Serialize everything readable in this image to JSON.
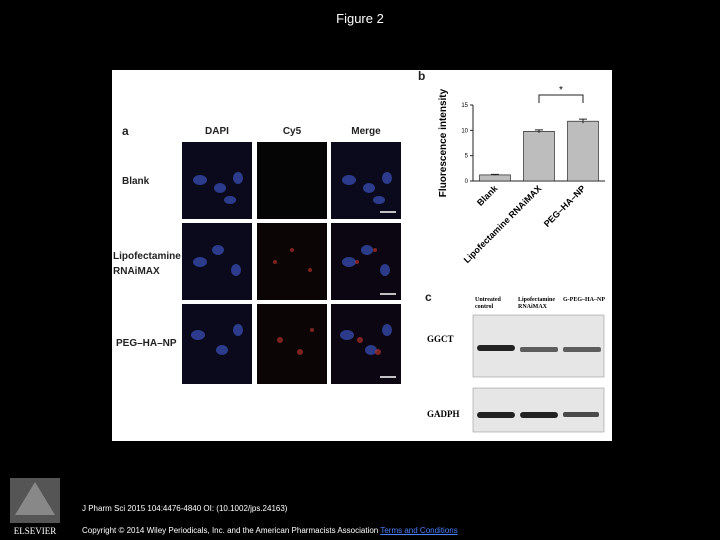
{
  "header": {
    "title": "Figure 2"
  },
  "panel_a": {
    "label": "a",
    "columns": [
      "DAPI",
      "Cy5",
      "Merge"
    ],
    "rows": [
      "Blank",
      "Lipofectamine RNAiMAX",
      "PEG–HA–NP"
    ]
  },
  "chart_data": {
    "type": "bar",
    "label": "b",
    "y_label": "Fluorescence intensity",
    "categories": [
      "Blank",
      "Lipofectamine RNAiMAX",
      "PEG–HA–NP"
    ],
    "values": [
      1.2,
      9.8,
      11.8
    ],
    "errors": [
      0.1,
      0.3,
      0.4
    ],
    "color": "#bdbdbd",
    "ylim": [
      0,
      15
    ],
    "yticks": [
      0,
      5,
      10,
      15
    ],
    "annotation": "*"
  },
  "panel_c": {
    "label": "c",
    "columns": [
      "Untreated control",
      "Lipofectamine RNAiMAX",
      "G-PEG–HA–NP"
    ],
    "rows": [
      "GGCT",
      "GADPH"
    ]
  },
  "footer": {
    "logo": "ELSEVIER",
    "citation": "J Pharm Sci 2015 104:4476-4840 OI: (10.1002/jps.24163)",
    "copyright": "Copyright © 2014 Wiley Periodicals, Inc. and the American Pharmacists Association",
    "link": "Terms and Conditions"
  }
}
